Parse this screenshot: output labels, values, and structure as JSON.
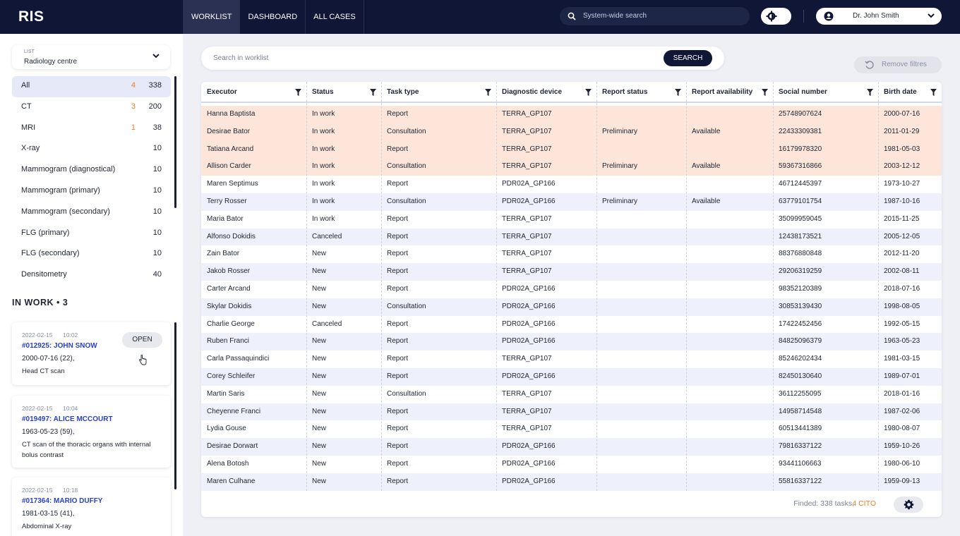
{
  "app": {
    "logo": "RIS"
  },
  "nav": {
    "tabs": [
      "WORKLIST",
      "DASHBOARD",
      "ALL CASES"
    ],
    "active": "WORKLIST"
  },
  "header": {
    "search_placeholder": "System-wide search",
    "user_name": "Dr. John Smith"
  },
  "sidebar": {
    "list_label": "LIST",
    "list_value": "Radiology centre",
    "categories": [
      {
        "name": "All",
        "cito": "4",
        "count": "338",
        "active": true
      },
      {
        "name": "CT",
        "cito": "3",
        "count": "200"
      },
      {
        "name": "MRI",
        "cito": "1",
        "count": "38"
      },
      {
        "name": "X-ray",
        "cito": "",
        "count": "10"
      },
      {
        "name": "Mammogram (diagnostical)",
        "cito": "",
        "count": "10"
      },
      {
        "name": "Mammogram (primary)",
        "cito": "",
        "count": "10"
      },
      {
        "name": "Mammogram (secondary)",
        "cito": "",
        "count": "10"
      },
      {
        "name": "FLG (primary)",
        "cito": "",
        "count": "10"
      },
      {
        "name": "FLG (secondary)",
        "cito": "",
        "count": "10"
      },
      {
        "name": "Densitometry",
        "cito": "",
        "count": "40"
      }
    ],
    "in_work_title": "IN WORK • 3",
    "open_label": "OPEN",
    "cards": [
      {
        "date": "2022-02-15",
        "time": "10:02",
        "title": "#012925:  JOHN SNOW",
        "birth": "2000-07-16 (22),",
        "desc": "Head CT scan"
      },
      {
        "date": "2022-02-15",
        "time": "10:04",
        "title": "#019497:  ALICE MCCOURT",
        "birth": "1963-05-23 (59),",
        "desc": "CT scan of the thoracic organs with internal bolus contrast"
      },
      {
        "date": "2022-02-15",
        "time": "10:18",
        "title": "#017364:  MARIO DUFFY",
        "birth": "1981-03-15 (41),",
        "desc": "Abdominal X-ray"
      }
    ]
  },
  "worklist": {
    "search_placeholder": "Search in worklist",
    "search_button": "SEARCH",
    "remove_filters": "Remove filtres",
    "columns": [
      "Executor",
      "Status",
      "Task type",
      "Diagnostic device",
      "Report status",
      "Report availability",
      "Social number",
      "Birth date"
    ],
    "rows": [
      [
        "Hanna Baptista",
        "In work",
        "Report",
        "TERRA_GP107",
        "",
        "",
        "25748907624",
        "2000-07-16"
      ],
      [
        "Desirae Bator",
        "In work",
        "Consultation",
        "TERRA_GP107",
        "Preliminary",
        "Available",
        "22433309381",
        "2011-01-29"
      ],
      [
        "Tatiana Arcand",
        "In work",
        "Report",
        "TERRA_GP107",
        "",
        "",
        "16179978320",
        "1981-05-03"
      ],
      [
        "Allison Carder",
        "In work",
        "Consultation",
        "TERRA_GP107",
        "Preliminary",
        "Available",
        "59367316866",
        "2003-12-12"
      ],
      [
        "Maren Septimus",
        "In work",
        "Report",
        "PDR02A_GP166",
        "",
        "",
        "46712445397",
        "1973-10-27"
      ],
      [
        "Terry Rosser",
        "In work",
        "Consultation",
        "PDR02A_GP166",
        "Preliminary",
        "Available",
        "63779101754",
        "1987-10-16"
      ],
      [
        "Maria Bator",
        "In work",
        "Report",
        "TERRA_GP107",
        "",
        "",
        "35099959045",
        "2015-11-25"
      ],
      [
        "Alfonso Dokidis",
        "Canceled",
        "Report",
        "TERRA_GP107",
        "",
        "",
        "12438173521",
        "2005-12-05"
      ],
      [
        "Zain Bator",
        "New",
        "Report",
        "TERRA_GP107",
        "",
        "",
        "88376880848",
        "2012-11-20"
      ],
      [
        "Jakob Rosser",
        "New",
        "Report",
        "TERRA_GP107",
        "",
        "",
        "29206319259",
        "2002-08-11"
      ],
      [
        "Carter Arcand",
        "New",
        "Report",
        "PDR02A_GP166",
        "",
        "",
        "98352120389",
        "2018-07-16"
      ],
      [
        "Skylar Dokidis",
        "New",
        "Consultation",
        "PDR02A_GP166",
        "",
        "",
        "30853139430",
        "1998-08-05"
      ],
      [
        "Charlie George",
        "Canceled",
        "Report",
        "PDR02A_GP166",
        "",
        "",
        "17422452456",
        "1992-05-15"
      ],
      [
        "Ruben Franci",
        "New",
        "Report",
        "PDR02A_GP166",
        "",
        "",
        "84825096379",
        "1963-05-23"
      ],
      [
        "Carla Passaquindici",
        "New",
        "Report",
        "TERRA_GP107",
        "",
        "",
        "85246202434",
        "1981-03-15"
      ],
      [
        "Corey Schleifer",
        "New",
        "Report",
        "PDR02A_GP166",
        "",
        "",
        "82450130640",
        "1989-07-01"
      ],
      [
        "Martin Saris",
        "New",
        "Consultation",
        "TERRA_GP107",
        "",
        "",
        "36112255095",
        "2018-01-16"
      ],
      [
        "Cheyenne Franci",
        "New",
        "Report",
        "TERRA_GP107",
        "",
        "",
        "14958714548",
        "1987-02-06"
      ],
      [
        "Lydia Gouse",
        "New",
        "Report",
        "TERRA_GP107",
        "",
        "",
        "60513441389",
        "1980-08-07"
      ],
      [
        "Desirae Dorwart",
        "New",
        "Report",
        "PDR02A_GP166",
        "",
        "",
        "79816337122",
        "1959-10-26"
      ],
      [
        "Alena Botosh",
        "New",
        "Report",
        "PDR02A_GP166",
        "",
        "",
        "93441106663",
        "1980-06-10"
      ],
      [
        "Maren Culhane",
        "New",
        "Report",
        "PDR02A_GP166",
        "",
        "",
        "55816337122",
        "1959-09-13"
      ]
    ],
    "cito_rows": 4,
    "footer_text": "Finded: 338 tasks,",
    "footer_cito": "4 CITO"
  },
  "colors": {
    "topbar": "#0f1636",
    "cito_row": "#fde5d9",
    "even_row": "#eef0fb",
    "accent_orange": "#ee7d2b",
    "link_blue": "#2a3fc8"
  }
}
